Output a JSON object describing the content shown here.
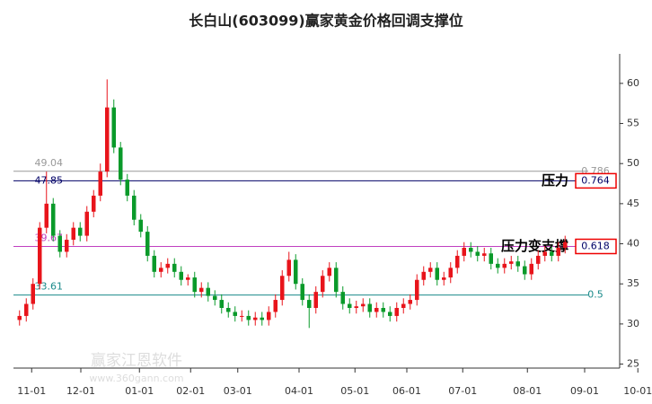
{
  "chart_data": {
    "type": "candlestick",
    "title": "长白山(603099)赢家黄金价格回调支撑位",
    "watermark": "赢家江恩软件",
    "watermark_url": "www.360gann.com",
    "up_color": "#e8141b",
    "down_color": "#0a9a2a",
    "xlim": [
      0,
      92.8
    ],
    "xticks": [
      {
        "value": 2.3,
        "label": "11-01"
      },
      {
        "value": 9.6,
        "label": "12-01"
      },
      {
        "value": 18.3,
        "label": "01-01"
      },
      {
        "value": 25.9,
        "label": "02-01"
      },
      {
        "value": 32.9,
        "label": "03-01"
      },
      {
        "value": 42,
        "label": "04-01"
      },
      {
        "value": 50.3,
        "label": "05-01"
      },
      {
        "value": 58,
        "label": "06-01"
      },
      {
        "value": 66.3,
        "label": "07-01"
      },
      {
        "value": 75.9,
        "label": "08-01"
      },
      {
        "value": 84.4,
        "label": "09-01"
      },
      {
        "value": 92.3,
        "label": "10-01"
      }
    ],
    "ylim": [
      24.5,
      62
    ],
    "yticks": [
      25,
      30,
      35,
      40,
      45,
      50,
      55,
      60
    ],
    "open": [
      30.5,
      31,
      32.5,
      35,
      42,
      45,
      41,
      39,
      40.5,
      42,
      41,
      44,
      46,
      49,
      57,
      52,
      48,
      46,
      43,
      41.5,
      38.5,
      36.5,
      37,
      37.5,
      36.5,
      35.5,
      35.8,
      34,
      34.5,
      33.5,
      33,
      32,
      31.5,
      31,
      31,
      30.5,
      30.8,
      30.5,
      31.5,
      33,
      36,
      38,
      35,
      33,
      32,
      34,
      36,
      37,
      34,
      32.5,
      32,
      32.2,
      32.5,
      31.5,
      32,
      31.5,
      31,
      32,
      32.5,
      33,
      35.5,
      36.5,
      37,
      35.5,
      35.8,
      37,
      38.5,
      39.5,
      39,
      38.5,
      38.8,
      37.5,
      37,
      37.5,
      37.8,
      37.2,
      36.2,
      37.5,
      38.5,
      39,
      38.5,
      39.5
    ],
    "high": [
      31.7,
      33.2,
      35.7,
      42.7,
      49,
      45.7,
      41.7,
      41.2,
      42.7,
      42.7,
      44.7,
      46.7,
      50,
      60.5,
      58,
      52.7,
      48.7,
      46.7,
      43.7,
      42.2,
      39.2,
      37.7,
      38.2,
      38.2,
      37.2,
      36.2,
      36.5,
      35.2,
      35.2,
      34.2,
      33.7,
      32.7,
      32.2,
      31.7,
      31.7,
      31.5,
      31.5,
      32.2,
      33.7,
      36.7,
      39,
      38.7,
      35.7,
      33.7,
      34.7,
      36.7,
      37.7,
      37.7,
      34.7,
      33.2,
      32.9,
      33.2,
      33.2,
      32.7,
      32.7,
      32.2,
      32.7,
      33.2,
      33.7,
      36.2,
      37.2,
      37.7,
      37.7,
      36.5,
      37.7,
      39.2,
      40.2,
      40.2,
      39.7,
      39.5,
      39.5,
      38.2,
      38.2,
      38.5,
      38.5,
      37.9,
      38.2,
      39.2,
      39.7,
      39.7,
      40.2,
      41
    ],
    "low": [
      29.8,
      30.3,
      31.8,
      34.3,
      41.3,
      40.3,
      38.3,
      38.3,
      39.8,
      40.3,
      40.3,
      43.3,
      45.3,
      48.3,
      51.3,
      47.3,
      45.3,
      42.3,
      40.8,
      37.8,
      35.8,
      35.8,
      36.3,
      35.8,
      34.8,
      34.8,
      33.3,
      33.3,
      32.8,
      32.3,
      31.3,
      30.8,
      30.3,
      30.3,
      29.8,
      29.8,
      29.8,
      29.8,
      30.8,
      32.3,
      35.3,
      34.3,
      32.3,
      29.5,
      31.3,
      33.3,
      35.3,
      33.3,
      31.8,
      31.3,
      31.3,
      31.5,
      30.8,
      30.8,
      30.8,
      30.3,
      30.3,
      31.3,
      31.8,
      32.3,
      34.8,
      35.8,
      34.8,
      34.8,
      35.1,
      36.3,
      37.8,
      38.3,
      37.8,
      37.8,
      36.8,
      36.3,
      36.3,
      36.8,
      36.5,
      35.5,
      35.5,
      36.8,
      37.8,
      37.8,
      37.8,
      38.8
    ],
    "close": [
      31,
      32.5,
      35,
      42,
      45,
      41,
      39,
      40.5,
      42,
      41,
      44,
      46,
      49,
      57,
      52,
      48,
      46,
      43,
      41.5,
      38.5,
      36.5,
      37,
      37.5,
      36.5,
      35.5,
      35.8,
      34,
      34.5,
      33.5,
      33,
      32,
      31.5,
      31,
      31,
      30.5,
      30.8,
      30.5,
      31.5,
      33,
      36,
      38,
      35,
      33,
      32,
      34,
      36,
      37,
      34,
      32.5,
      32,
      32.2,
      32.5,
      31.5,
      32,
      31.5,
      31,
      32,
      32.5,
      33,
      35.5,
      36.5,
      37,
      35.5,
      35.8,
      37,
      38.5,
      39.5,
      39,
      38.5,
      38.8,
      37.5,
      37,
      37.5,
      37.8,
      37.2,
      36.2,
      37.5,
      38.5,
      39,
      38.5,
      39.5,
      40.2
    ],
    "levels": [
      {
        "value": 49.04,
        "ratio": "0.786",
        "color": "#999999"
      },
      {
        "value": 47.85,
        "ratio": "0.764",
        "color": "#000066",
        "boxed": true,
        "annotation": "压力"
      },
      {
        "value": 39.67,
        "ratio": "0.618",
        "color": "#c040c0",
        "boxed": true,
        "annotation": "压力变支撑"
      },
      {
        "value": 33.61,
        "ratio": "0.5",
        "color": "#1a8a8a"
      }
    ]
  }
}
